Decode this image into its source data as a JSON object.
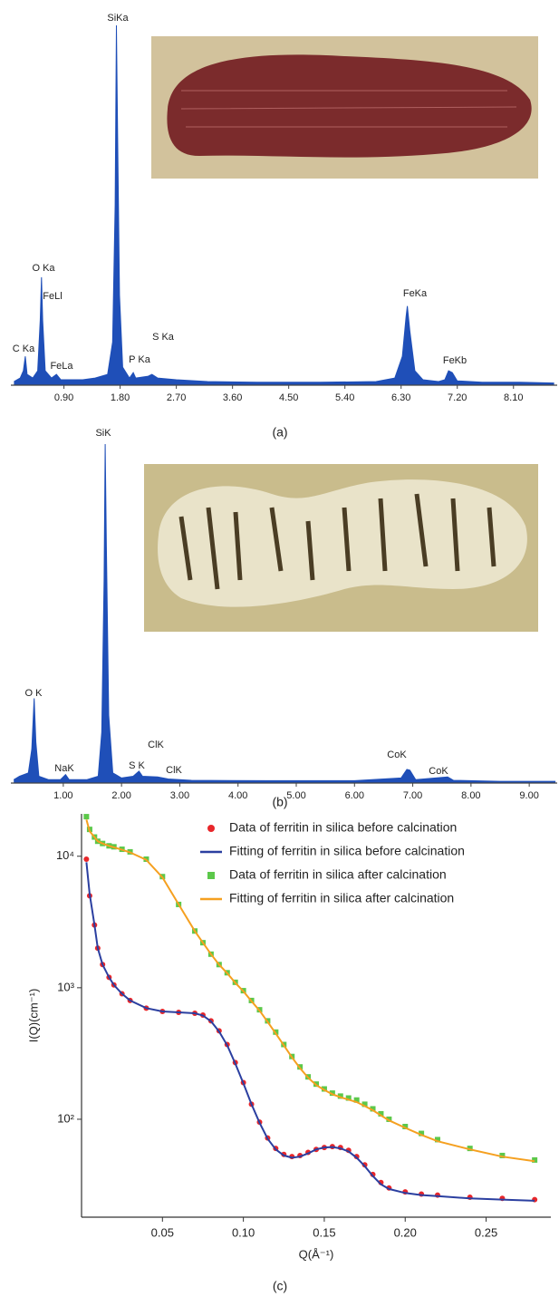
{
  "chart_data": [
    {
      "type": "area",
      "caption": "(a)",
      "color": "#1f4fb8",
      "x": [
        0.1,
        0.2,
        0.25,
        0.28,
        0.31,
        0.4,
        0.48,
        0.52,
        0.54,
        0.56,
        0.6,
        0.7,
        0.78,
        0.85,
        1.0,
        1.2,
        1.4,
        1.6,
        1.68,
        1.72,
        1.74,
        1.76,
        1.79,
        1.84,
        1.95,
        2.01,
        2.05,
        2.25,
        2.31,
        2.4,
        2.7,
        3.2,
        4.0,
        5.0,
        5.9,
        6.2,
        6.32,
        6.38,
        6.4,
        6.44,
        6.52,
        6.65,
        6.9,
        7.0,
        7.06,
        7.12,
        7.2,
        7.6,
        8.2,
        8.75
      ],
      "values": [
        1,
        2,
        4,
        8,
        3,
        2,
        4,
        18,
        30,
        18,
        4,
        2,
        3,
        1.5,
        1.5,
        1.5,
        2,
        3,
        12,
        50,
        100,
        70,
        25,
        5,
        2,
        3.5,
        2,
        2.5,
        3,
        2,
        1.5,
        1,
        0.8,
        0.8,
        1,
        2,
        8,
        19,
        22,
        15,
        4,
        1.5,
        1,
        1.5,
        4,
        3.5,
        1.2,
        0.8,
        0.8,
        0.6
      ],
      "xlim": [
        0.05,
        8.8
      ],
      "ylim": [
        0,
        100
      ],
      "xticks": [
        {
          "value": 0.9,
          "label": "0.90"
        },
        {
          "value": 1.8,
          "label": "1.80"
        },
        {
          "value": 2.7,
          "label": "2.70"
        },
        {
          "value": 3.6,
          "label": "3.60"
        },
        {
          "value": 4.5,
          "label": "4.50"
        },
        {
          "value": 5.4,
          "label": "5.40"
        },
        {
          "value": 6.3,
          "label": "6.30"
        },
        {
          "value": 7.2,
          "label": "7.20"
        },
        {
          "value": 8.1,
          "label": "8.10"
        }
      ],
      "annotations": [
        "SiKa",
        "O Ka",
        "FeLl",
        "C Ka",
        "FeLa",
        "P Ka",
        "S Ka",
        "FeKa",
        "FeKb"
      ]
    },
    {
      "type": "area",
      "caption": "(b)",
      "color": "#1f4fb8",
      "x": [
        0.15,
        0.25,
        0.4,
        0.46,
        0.5,
        0.53,
        0.58,
        0.75,
        0.95,
        1.04,
        1.1,
        1.4,
        1.6,
        1.66,
        1.7,
        1.72,
        1.74,
        1.78,
        1.85,
        2.0,
        2.2,
        2.3,
        2.36,
        2.62,
        2.8,
        3.2,
        4.5,
        6.0,
        6.8,
        6.9,
        6.95,
        7.05,
        7.6,
        7.7,
        8.5,
        9.45
      ],
      "values": [
        1,
        2,
        3,
        10,
        25,
        12,
        2,
        1,
        1,
        2.5,
        1,
        1,
        2,
        15,
        60,
        100,
        70,
        20,
        3,
        1.5,
        2,
        3.5,
        2,
        1.8,
        1.2,
        0.8,
        0.7,
        0.7,
        1.5,
        4,
        3.8,
        1,
        1.8,
        0.8,
        0.5,
        0.5
      ],
      "xlim": [
        0.1,
        9.48
      ],
      "ylim": [
        0,
        100
      ],
      "xticks": [
        {
          "value": 1,
          "label": "1.00"
        },
        {
          "value": 2,
          "label": "2.00"
        },
        {
          "value": 3,
          "label": "3.00"
        },
        {
          "value": 4,
          "label": "4.00"
        },
        {
          "value": 5,
          "label": "5.00"
        },
        {
          "value": 6,
          "label": "6.00"
        },
        {
          "value": 7,
          "label": "7.00"
        },
        {
          "value": 8,
          "label": "8.00"
        },
        {
          "value": 9,
          "label": "9.00"
        }
      ],
      "annotations": [
        "O K",
        "SiK",
        "NaK",
        "S K",
        "ClK",
        "ClK",
        "CoK",
        "CoK"
      ]
    },
    {
      "type": "line",
      "caption": "(c)",
      "log_y": true,
      "legend": "upper right",
      "xlabel": "Q(Å⁻¹)",
      "ylabel": "I(Q)(cm⁻¹)",
      "x": [
        0.003,
        0.005,
        0.008,
        0.01,
        0.013,
        0.017,
        0.02,
        0.025,
        0.03,
        0.04,
        0.05,
        0.06,
        0.07,
        0.075,
        0.08,
        0.085,
        0.09,
        0.095,
        0.1,
        0.105,
        0.11,
        0.115,
        0.12,
        0.125,
        0.13,
        0.135,
        0.14,
        0.145,
        0.15,
        0.155,
        0.16,
        0.165,
        0.17,
        0.175,
        0.18,
        0.185,
        0.19,
        0.2,
        0.21,
        0.22,
        0.24,
        0.26,
        0.28
      ],
      "series": [
        {
          "name": "Data of ferritin in silica before calcination",
          "color": "#e8262a",
          "marker": "circle",
          "values": [
            9500,
            5000,
            3000,
            2000,
            1500,
            1200,
            1050,
            900,
            800,
            700,
            660,
            650,
            640,
            620,
            560,
            470,
            370,
            270,
            190,
            130,
            95,
            72,
            60,
            54,
            52,
            53,
            56,
            59,
            61,
            62,
            61,
            58,
            52,
            45,
            38,
            33,
            30,
            28,
            27,
            26.5,
            25.5,
            25,
            24.5
          ]
        },
        {
          "name": "Fitting of ferritin in silica before calcination",
          "color": "#2b3fa0",
          "marker": "line",
          "values": [
            9000,
            5200,
            3000,
            2000,
            1500,
            1200,
            1050,
            900,
            800,
            700,
            660,
            650,
            640,
            615,
            555,
            465,
            365,
            265,
            188,
            130,
            94,
            71,
            59,
            53,
            51,
            52,
            55,
            59,
            61,
            61.5,
            60,
            57,
            51,
            44,
            37,
            32,
            29.5,
            27.5,
            26.5,
            26,
            25,
            24.5,
            24
          ]
        },
        {
          "name": "Data of ferritin in silica after calcination",
          "color": "#5cc84a",
          "marker": "square",
          "values": [
            20000,
            16000,
            14000,
            13000,
            12500,
            12000,
            11800,
            11300,
            10800,
            9500,
            7000,
            4300,
            2700,
            2200,
            1800,
            1500,
            1300,
            1100,
            950,
            800,
            680,
            560,
            460,
            370,
            300,
            250,
            210,
            185,
            170,
            158,
            150,
            145,
            140,
            130,
            120,
            110,
            100,
            88,
            78,
            70,
            60,
            53,
            49
          ]
        },
        {
          "name": "Fitting of ferritin in silica after calcination",
          "color": "#f5a020",
          "marker": "line",
          "values": [
            19000,
            15500,
            14000,
            13000,
            12500,
            12000,
            11700,
            11200,
            10700,
            9400,
            6900,
            4300,
            2700,
            2200,
            1800,
            1500,
            1290,
            1090,
            940,
            790,
            670,
            550,
            450,
            365,
            296,
            245,
            207,
            182,
            167,
            155,
            147,
            141,
            135,
            126,
            117,
            107,
            98,
            86,
            76,
            68,
            59,
            52,
            48
          ]
        }
      ],
      "xlim": [
        0,
        0.29
      ],
      "ylim": [
        18,
        21000
      ],
      "xticks": [
        0.05,
        {
          "value": 0.1,
          "label": "0.10"
        },
        0.15,
        {
          "value": 0.2,
          "label": "0.20"
        },
        0.25
      ],
      "yticks": [
        {
          "value": 100,
          "label": "10²"
        },
        {
          "value": 1000,
          "label": "10³"
        },
        {
          "value": 10000,
          "label": "10⁴"
        }
      ]
    }
  ]
}
